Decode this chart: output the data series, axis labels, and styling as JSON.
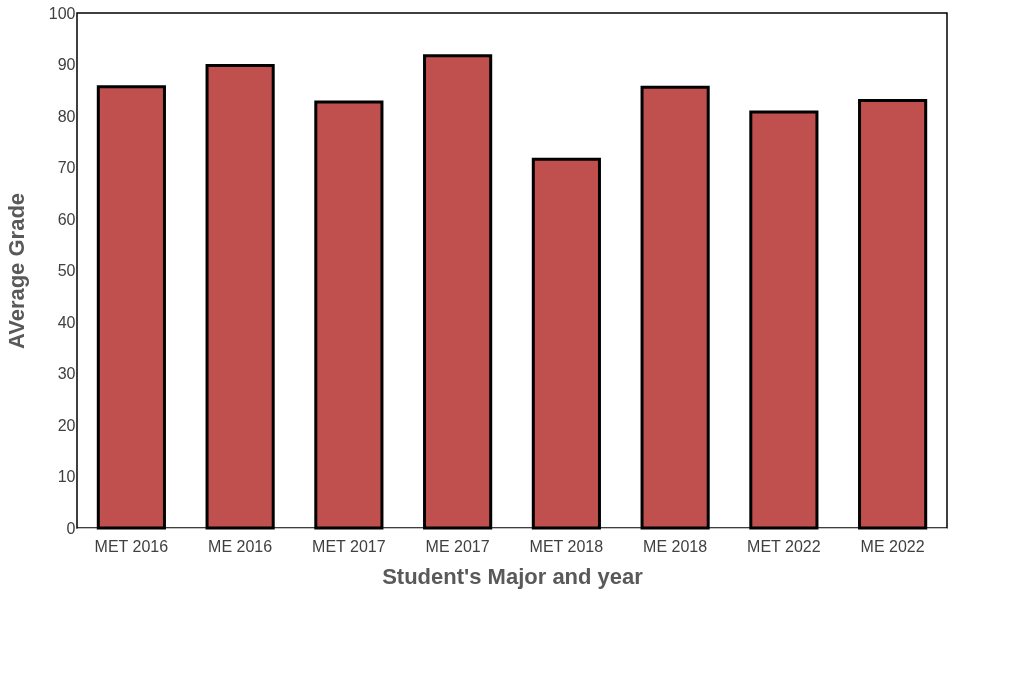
{
  "chart_data": {
    "type": "bar",
    "xlabel": "Student's Major and year",
    "ylabel": "AVerage Grade",
    "categories": [
      "MET 2016",
      "ME 2016",
      "MET 2017",
      "ME 2017",
      "MET 2018",
      "ME 2018",
      "MET 2022",
      "ME 2022"
    ],
    "values": [
      85.7,
      89.8,
      82.7,
      91.7,
      71.6,
      85.6,
      80.8,
      83.0
    ],
    "color": "#c0504d",
    "ylim": [
      0,
      100
    ],
    "yticks": [
      0,
      10,
      20,
      30,
      40,
      50,
      60,
      70,
      80,
      90,
      100
    ],
    "grid": false
  }
}
